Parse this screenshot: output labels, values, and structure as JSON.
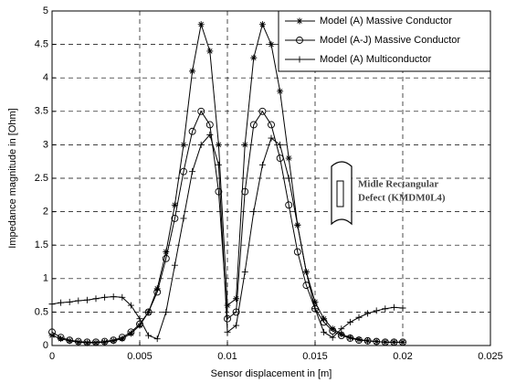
{
  "chart_data": {
    "type": "line",
    "xlabel": "Sensor displacement in [m]",
    "ylabel": "Impedance magnitude in [Ohm]",
    "annotation": [
      "Midle Rectangular",
      "Defect (KMDM0L4)"
    ],
    "x": [
      0,
      0.0005,
      0.001,
      0.0015,
      0.002,
      0.0025,
      0.003,
      0.0035,
      0.004,
      0.0045,
      0.005,
      0.0055,
      0.006,
      0.0065,
      0.007,
      0.0075,
      0.008,
      0.0085,
      0.009,
      0.0095,
      0.01,
      0.0105,
      0.011,
      0.0115,
      0.012,
      0.0125,
      0.013,
      0.0135,
      0.014,
      0.0145,
      0.015,
      0.0155,
      0.016,
      0.0165,
      0.017,
      0.0175,
      0.018,
      0.0185,
      0.019,
      0.0195,
      0.02
    ],
    "series": [
      {
        "name": "Model (A) Massive Conductor",
        "color": "#000000",
        "marker": "asterisk",
        "values": [
          0.15,
          0.1,
          0.07,
          0.05,
          0.04,
          0.04,
          0.05,
          0.07,
          0.1,
          0.18,
          0.3,
          0.5,
          0.85,
          1.4,
          2.1,
          3.0,
          4.1,
          4.8,
          4.4,
          3.0,
          0.6,
          0.7,
          3.0,
          4.3,
          4.8,
          4.5,
          3.8,
          2.8,
          1.8,
          1.1,
          0.65,
          0.4,
          0.25,
          0.17,
          0.12,
          0.09,
          0.07,
          0.06,
          0.05,
          0.05,
          0.05
        ]
      },
      {
        "name": "Model (A-J) Massive Conductor",
        "color": "#000000",
        "marker": "circle",
        "values": [
          0.2,
          0.12,
          0.08,
          0.06,
          0.05,
          0.05,
          0.06,
          0.08,
          0.12,
          0.2,
          0.32,
          0.5,
          0.8,
          1.3,
          1.9,
          2.6,
          3.2,
          3.5,
          3.3,
          2.3,
          0.4,
          0.5,
          2.3,
          3.3,
          3.5,
          3.3,
          2.8,
          2.1,
          1.4,
          0.9,
          0.55,
          0.35,
          0.22,
          0.15,
          0.11,
          0.08,
          0.07,
          0.06,
          0.05,
          0.05,
          0.05
        ]
      },
      {
        "name": "Model (A) Multiconductor",
        "color": "#000000",
        "marker": "plus",
        "values": [
          0.62,
          0.64,
          0.65,
          0.67,
          0.68,
          0.7,
          0.72,
          0.73,
          0.72,
          0.6,
          0.4,
          0.15,
          0.1,
          0.5,
          1.2,
          1.9,
          2.6,
          3.0,
          3.15,
          2.7,
          0.2,
          0.3,
          1.1,
          2.0,
          2.7,
          3.1,
          3.0,
          2.5,
          1.8,
          1.1,
          0.55,
          0.2,
          0.12,
          0.25,
          0.35,
          0.42,
          0.48,
          0.52,
          0.55,
          0.57,
          0.56
        ]
      }
    ],
    "xlim": [
      0,
      0.025
    ],
    "xticks": [
      0,
      0.005,
      0.01,
      0.015,
      0.02,
      0.025
    ],
    "ylim": [
      0,
      5
    ],
    "yticks": [
      0,
      0.5,
      1,
      1.5,
      2,
      2.5,
      3,
      3.5,
      4,
      4.5,
      5
    ],
    "grid": true,
    "legend": "upper right"
  }
}
